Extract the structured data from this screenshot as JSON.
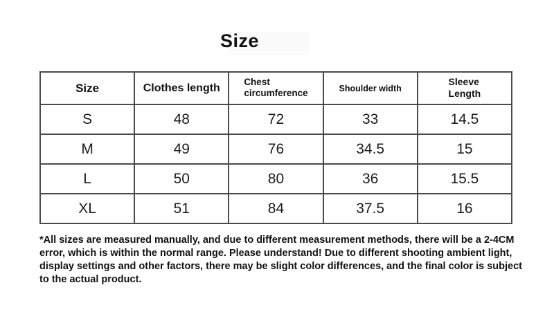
{
  "page": {
    "title": "Size"
  },
  "table": {
    "columns": [
      "Size",
      "Clothes length",
      "Chest\ncircumference",
      "Shoulder width",
      "Sleeve\nLength"
    ],
    "rows": [
      {
        "size": "S",
        "values": [
          "48",
          "72",
          "33",
          "14.5"
        ]
      },
      {
        "size": "M",
        "values": [
          "49",
          "76",
          "34.5",
          "15"
        ]
      },
      {
        "size": "L",
        "values": [
          "50",
          "80",
          "36",
          "15.5"
        ]
      },
      {
        "size": "XL",
        "values": [
          "51",
          "84",
          "37.5",
          "16"
        ]
      }
    ]
  },
  "disclaimer": "*All sizes are measured manually, and due to different measurement methods, there will be a 2-4CM error, which is within the normal range. Please understand! Due to different shooting ambient light, display settings and other factors, there may be slight color differences, and the final color is subject to the actual product."
}
